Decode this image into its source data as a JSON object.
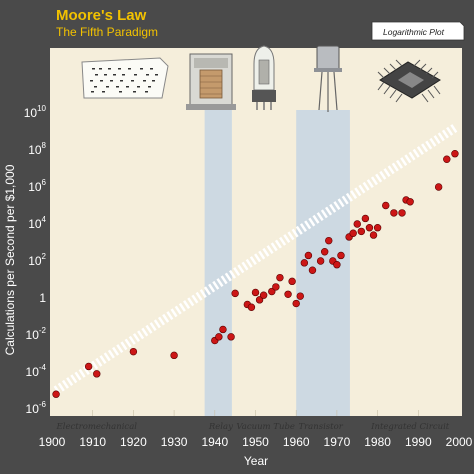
{
  "chart_data": {
    "type": "scatter",
    "title": "Moore's Law",
    "subtitle": "The Fifth Paradigm",
    "xlabel": "Year",
    "ylabel": "Calculations per Second per $1,000",
    "scale_note": "Logarithmic Plot",
    "xlim": [
      1900,
      2000
    ],
    "y_log10_lim": [
      -6,
      10
    ],
    "x_ticks": [
      "1900",
      "1910",
      "1920",
      "1930",
      "1940",
      "1950",
      "1960",
      "1970",
      "1980",
      "1990",
      "2000"
    ],
    "y_ticks": [
      {
        "base": "10",
        "exp": "-6",
        "value_log10": -6
      },
      {
        "base": "10",
        "exp": "-4",
        "value_log10": -4
      },
      {
        "base": "10",
        "exp": "-2",
        "value_log10": -2
      },
      {
        "base": "1",
        "exp": "",
        "value_log10": 0
      },
      {
        "base": "10",
        "exp": "2",
        "value_log10": 2
      },
      {
        "base": "10",
        "exp": "4",
        "value_log10": 4
      },
      {
        "base": "10",
        "exp": "6",
        "value_log10": 6
      },
      {
        "base": "10",
        "exp": "8",
        "value_log10": 8
      },
      {
        "base": "10",
        "exp": "10",
        "value_log10": 10
      }
    ],
    "eras": [
      {
        "label": "Electromechanical",
        "label_x": 1911
      },
      {
        "label": "Relay",
        "label_x": 1941.5
      },
      {
        "label": "Vacuum Tube",
        "label_x": 1952.5
      },
      {
        "label": "Transistor",
        "label_x": 1966
      },
      {
        "label": "Integrated Circuit",
        "label_x": 1988
      }
    ],
    "highlight_bands": [
      {
        "x0": 1937.5,
        "x1": 1944.2
      },
      {
        "x0": 1960,
        "x1": 1973.2
      }
    ],
    "trend": {
      "x0": 1901,
      "y0_log10": -5.0,
      "x1": 1999,
      "y1_log10": 9.2
    },
    "points": [
      {
        "x": 1901,
        "y_log10": -5.2
      },
      {
        "x": 1909,
        "y_log10": -3.7
      },
      {
        "x": 1911,
        "y_log10": -4.1
      },
      {
        "x": 1920,
        "y_log10": -2.9
      },
      {
        "x": 1930,
        "y_log10": -3.1
      },
      {
        "x": 1940,
        "y_log10": -2.3
      },
      {
        "x": 1941,
        "y_log10": -2.1
      },
      {
        "x": 1942,
        "y_log10": -1.7
      },
      {
        "x": 1944,
        "y_log10": -2.1
      },
      {
        "x": 1945,
        "y_log10": 0.25
      },
      {
        "x": 1948,
        "y_log10": -0.35
      },
      {
        "x": 1949,
        "y_log10": -0.5
      },
      {
        "x": 1950,
        "y_log10": 0.3
      },
      {
        "x": 1951,
        "y_log10": -0.1
      },
      {
        "x": 1952,
        "y_log10": 0.15
      },
      {
        "x": 1954,
        "y_log10": 0.35
      },
      {
        "x": 1955,
        "y_log10": 0.6
      },
      {
        "x": 1956,
        "y_log10": 1.1
      },
      {
        "x": 1958,
        "y_log10": 0.2
      },
      {
        "x": 1959,
        "y_log10": 0.9
      },
      {
        "x": 1960,
        "y_log10": -0.3
      },
      {
        "x": 1961,
        "y_log10": 0.1
      },
      {
        "x": 1962,
        "y_log10": 1.9
      },
      {
        "x": 1963,
        "y_log10": 2.3
      },
      {
        "x": 1964,
        "y_log10": 1.5
      },
      {
        "x": 1966,
        "y_log10": 2.0
      },
      {
        "x": 1967,
        "y_log10": 2.5
      },
      {
        "x": 1968,
        "y_log10": 3.1
      },
      {
        "x": 1969,
        "y_log10": 2.0
      },
      {
        "x": 1970,
        "y_log10": 1.8
      },
      {
        "x": 1971,
        "y_log10": 2.3
      },
      {
        "x": 1973,
        "y_log10": 3.3
      },
      {
        "x": 1974,
        "y_log10": 3.5
      },
      {
        "x": 1975,
        "y_log10": 4.0
      },
      {
        "x": 1976,
        "y_log10": 3.6
      },
      {
        "x": 1977,
        "y_log10": 4.3
      },
      {
        "x": 1978,
        "y_log10": 3.8
      },
      {
        "x": 1979,
        "y_log10": 3.4
      },
      {
        "x": 1980,
        "y_log10": 3.8
      },
      {
        "x": 1982,
        "y_log10": 5.0
      },
      {
        "x": 1984,
        "y_log10": 4.6
      },
      {
        "x": 1986,
        "y_log10": 4.6
      },
      {
        "x": 1987,
        "y_log10": 5.3
      },
      {
        "x": 1988,
        "y_log10": 5.2
      },
      {
        "x": 1995,
        "y_log10": 6.0
      },
      {
        "x": 1997,
        "y_log10": 7.5
      },
      {
        "x": 1999,
        "y_log10": 7.8
      }
    ],
    "colors": {
      "background": "#4a4a4a",
      "plot_fill": "#f5eedb",
      "band": "#cdd9e2",
      "point": "#cc1616",
      "point_stroke": "#5a0000",
      "trend_dash": "#ffffff",
      "title": "#f2c200",
      "tick_text": "#ffffff",
      "gridline": "#c9bfa6"
    },
    "icons": [
      "punch-card-icon",
      "relay-icon",
      "vacuum-tube-icon",
      "transistor-icon",
      "integrated-circuit-icon"
    ]
  }
}
